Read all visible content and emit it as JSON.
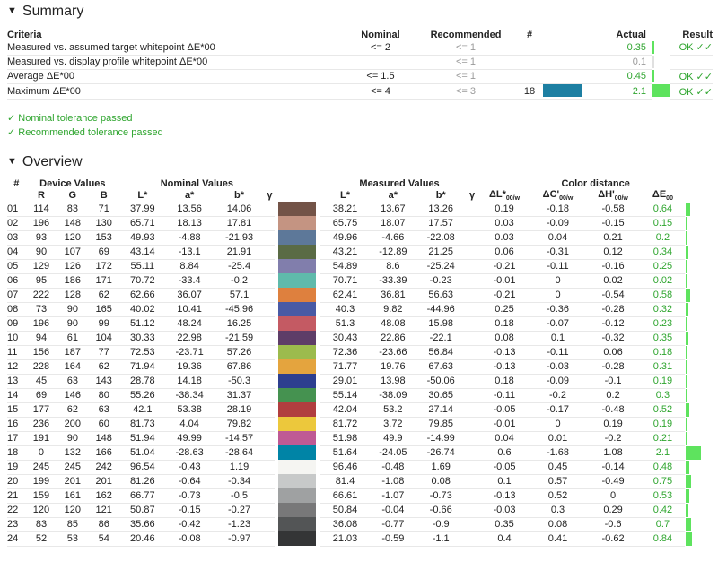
{
  "summary": {
    "title": "Summary",
    "headers": {
      "criteria": "Criteria",
      "nominal": "Nominal",
      "recommended": "Recommended",
      "num": "#",
      "actual": "Actual",
      "result": "Result"
    },
    "rows": [
      {
        "criteria": "Measured vs. assumed target whitepoint ΔE*00",
        "nominal": "<= 2",
        "recommended": "<= 1",
        "num": "",
        "actual": "0.35",
        "actual_color": "green",
        "result": "OK ✓✓",
        "bar": 0.05,
        "bar_color": "#5ee35e"
      },
      {
        "criteria": "Measured vs. display profile whitepoint ΔE*00",
        "nominal": "",
        "recommended": "<= 1",
        "num": "",
        "actual": "0.1",
        "actual_color": "grey",
        "result": "",
        "bar": 0.02,
        "bar_color": "#e0e0e0"
      },
      {
        "criteria": "Average ΔE*00",
        "nominal": "<= 1.5",
        "recommended": "<= 1",
        "num": "",
        "actual": "0.45",
        "actual_color": "green",
        "result": "OK ✓✓",
        "bar": 0.06,
        "bar_color": "#5ee35e"
      },
      {
        "criteria": "Maximum ΔE*00",
        "nominal": "<= 4",
        "recommended": "<= 3",
        "num": "18",
        "actual": "2.1",
        "actual_color": "green",
        "result": "OK ✓✓",
        "bar": 0.5,
        "bar_color": "#5ee35e",
        "swatch": "#1d7fa2"
      }
    ],
    "nominal_passed": "✓ Nominal tolerance passed",
    "recommended_passed": "✓ Recommended tolerance passed"
  },
  "overview": {
    "title": "Overview",
    "group_headers": {
      "device": "Device Values",
      "nominal": "Nominal Values",
      "measured": "Measured Values",
      "distance": "Color distance"
    },
    "col_headers": {
      "num": "#",
      "r": "R",
      "g": "G",
      "b": "B",
      "L": "L*",
      "a": "a*",
      "bb": "b*",
      "gamma": "γ",
      "mL": "L*",
      "ma": "a*",
      "mb": "b*",
      "mgamma": "γ",
      "dL": "ΔL*",
      "dC": "ΔC'",
      "dH": "ΔH'",
      "dE": "ΔE",
      "sub": "00/w",
      "sub2": "00"
    },
    "rows": [
      {
        "id": "01",
        "R": "114",
        "G": "83",
        "B": "71",
        "L": "37.99",
        "a": "13.56",
        "b": "14.06",
        "color": "#735347",
        "mL": "38.21",
        "ma": "13.67",
        "mb": "13.26",
        "dL": "0.19",
        "dC": "-0.18",
        "dH": "-0.58",
        "dE": "0.64",
        "bar": 0.64
      },
      {
        "id": "02",
        "R": "196",
        "G": "148",
        "B": "130",
        "L": "65.71",
        "a": "18.13",
        "b": "17.81",
        "color": "#c49482",
        "mL": "65.75",
        "ma": "18.07",
        "mb": "17.57",
        "dL": "0.03",
        "dC": "-0.09",
        "dH": "-0.15",
        "dE": "0.15",
        "bar": 0.15
      },
      {
        "id": "03",
        "R": "93",
        "G": "120",
        "B": "153",
        "L": "49.93",
        "a": "-4.88",
        "b": "-21.93",
        "color": "#5d7899",
        "mL": "49.96",
        "ma": "-4.66",
        "mb": "-22.08",
        "dL": "0.03",
        "dC": "0.04",
        "dH": "0.21",
        "dE": "0.2",
        "bar": 0.2
      },
      {
        "id": "04",
        "R": "90",
        "G": "107",
        "B": "69",
        "L": "43.14",
        "a": "-13.1",
        "b": "21.91",
        "color": "#5a6b45",
        "mL": "43.21",
        "ma": "-12.89",
        "mb": "21.25",
        "dL": "0.06",
        "dC": "-0.31",
        "dH": "0.12",
        "dE": "0.34",
        "bar": 0.34
      },
      {
        "id": "05",
        "R": "129",
        "G": "126",
        "B": "172",
        "L": "55.11",
        "a": "8.84",
        "b": "-25.4",
        "color": "#817eac",
        "mL": "54.89",
        "ma": "8.6",
        "mb": "-25.24",
        "dL": "-0.21",
        "dC": "-0.11",
        "dH": "-0.16",
        "dE": "0.25",
        "bar": 0.25
      },
      {
        "id": "06",
        "R": "95",
        "G": "186",
        "B": "171",
        "L": "70.72",
        "a": "-33.4",
        "b": "-0.2",
        "color": "#5fbaab",
        "mL": "70.71",
        "ma": "-33.39",
        "mb": "-0.23",
        "dL": "-0.01",
        "dC": "0",
        "dH": "0.02",
        "dE": "0.02",
        "bar": 0.02
      },
      {
        "id": "07",
        "R": "222",
        "G": "128",
        "B": "62",
        "L": "62.66",
        "a": "36.07",
        "b": "57.1",
        "color": "#de803e",
        "mL": "62.41",
        "ma": "36.81",
        "mb": "56.63",
        "dL": "-0.21",
        "dC": "0",
        "dH": "-0.54",
        "dE": "0.58",
        "bar": 0.58
      },
      {
        "id": "08",
        "R": "73",
        "G": "90",
        "B": "165",
        "L": "40.02",
        "a": "10.41",
        "b": "-45.96",
        "color": "#495aa5",
        "mL": "40.3",
        "ma": "9.82",
        "mb": "-44.96",
        "dL": "0.25",
        "dC": "-0.36",
        "dH": "-0.28",
        "dE": "0.32",
        "bar": 0.32
      },
      {
        "id": "09",
        "R": "196",
        "G": "90",
        "B": "99",
        "L": "51.12",
        "a": "48.24",
        "b": "16.25",
        "color": "#c45a63",
        "mL": "51.3",
        "ma": "48.08",
        "mb": "15.98",
        "dL": "0.18",
        "dC": "-0.07",
        "dH": "-0.12",
        "dE": "0.23",
        "bar": 0.23
      },
      {
        "id": "10",
        "R": "94",
        "G": "61",
        "B": "104",
        "L": "30.33",
        "a": "22.98",
        "b": "-21.59",
        "color": "#5e3d68",
        "mL": "30.43",
        "ma": "22.86",
        "mb": "-22.1",
        "dL": "0.08",
        "dC": "0.1",
        "dH": "-0.32",
        "dE": "0.35",
        "bar": 0.35
      },
      {
        "id": "11",
        "R": "156",
        "G": "187",
        "B": "77",
        "L": "72.53",
        "a": "-23.71",
        "b": "57.26",
        "color": "#9cbb4d",
        "mL": "72.36",
        "ma": "-23.66",
        "mb": "56.84",
        "dL": "-0.13",
        "dC": "-0.11",
        "dH": "0.06",
        "dE": "0.18",
        "bar": 0.18
      },
      {
        "id": "12",
        "R": "228",
        "G": "164",
        "B": "62",
        "L": "71.94",
        "a": "19.36",
        "b": "67.86",
        "color": "#e4a43e",
        "mL": "71.77",
        "ma": "19.76",
        "mb": "67.63",
        "dL": "-0.13",
        "dC": "-0.03",
        "dH": "-0.28",
        "dE": "0.31",
        "bar": 0.31
      },
      {
        "id": "13",
        "R": "45",
        "G": "63",
        "B": "143",
        "L": "28.78",
        "a": "14.18",
        "b": "-50.3",
        "color": "#2d3f8f",
        "mL": "29.01",
        "ma": "13.98",
        "mb": "-50.06",
        "dL": "0.18",
        "dC": "-0.09",
        "dH": "-0.1",
        "dE": "0.19",
        "bar": 0.19
      },
      {
        "id": "14",
        "R": "69",
        "G": "146",
        "B": "80",
        "L": "55.26",
        "a": "-38.34",
        "b": "31.37",
        "color": "#459250",
        "mL": "55.14",
        "ma": "-38.09",
        "mb": "30.65",
        "dL": "-0.11",
        "dC": "-0.2",
        "dH": "0.2",
        "dE": "0.3",
        "bar": 0.3
      },
      {
        "id": "15",
        "R": "177",
        "G": "62",
        "B": "63",
        "L": "42.1",
        "a": "53.38",
        "b": "28.19",
        "color": "#b13e3f",
        "mL": "42.04",
        "ma": "53.2",
        "mb": "27.14",
        "dL": "-0.05",
        "dC": "-0.17",
        "dH": "-0.48",
        "dE": "0.52",
        "bar": 0.52
      },
      {
        "id": "16",
        "R": "236",
        "G": "200",
        "B": "60",
        "L": "81.73",
        "a": "4.04",
        "b": "79.82",
        "color": "#ecc83c",
        "mL": "81.72",
        "ma": "3.72",
        "mb": "79.85",
        "dL": "-0.01",
        "dC": "0",
        "dH": "0.19",
        "dE": "0.19",
        "bar": 0.19
      },
      {
        "id": "17",
        "R": "191",
        "G": "90",
        "B": "148",
        "L": "51.94",
        "a": "49.99",
        "b": "-14.57",
        "color": "#bf5a94",
        "mL": "51.98",
        "ma": "49.9",
        "mb": "-14.99",
        "dL": "0.04",
        "dC": "0.01",
        "dH": "-0.2",
        "dE": "0.21",
        "bar": 0.21
      },
      {
        "id": "18",
        "R": "0",
        "G": "132",
        "B": "166",
        "L": "51.04",
        "a": "-28.63",
        "b": "-28.64",
        "color": "#0084a6",
        "mL": "51.64",
        "ma": "-24.05",
        "mb": "-26.74",
        "dL": "0.6",
        "dC": "-1.68",
        "dH": "1.08",
        "dE": "2.1",
        "bar": 2.1
      },
      {
        "id": "19",
        "R": "245",
        "G": "245",
        "B": "242",
        "L": "96.54",
        "a": "-0.43",
        "b": "1.19",
        "color": "#f5f5f2",
        "mL": "96.46",
        "ma": "-0.48",
        "mb": "1.69",
        "dL": "-0.05",
        "dC": "0.45",
        "dH": "-0.14",
        "dE": "0.48",
        "bar": 0.48
      },
      {
        "id": "20",
        "R": "199",
        "G": "201",
        "B": "201",
        "L": "81.26",
        "a": "-0.64",
        "b": "-0.34",
        "color": "#c7c9c9",
        "mL": "81.4",
        "ma": "-1.08",
        "mb": "0.08",
        "dL": "0.1",
        "dC": "0.57",
        "dH": "-0.49",
        "dE": "0.75",
        "bar": 0.75
      },
      {
        "id": "21",
        "R": "159",
        "G": "161",
        "B": "162",
        "L": "66.77",
        "a": "-0.73",
        "b": "-0.5",
        "color": "#9fa1a2",
        "mL": "66.61",
        "ma": "-1.07",
        "mb": "-0.73",
        "dL": "-0.13",
        "dC": "0.52",
        "dH": "0",
        "dE": "0.53",
        "bar": 0.53
      },
      {
        "id": "22",
        "R": "120",
        "G": "120",
        "B": "121",
        "L": "50.87",
        "a": "-0.15",
        "b": "-0.27",
        "color": "#787879",
        "mL": "50.84",
        "ma": "-0.04",
        "mb": "-0.66",
        "dL": "-0.03",
        "dC": "0.3",
        "dH": "0.29",
        "dE": "0.42",
        "bar": 0.42
      },
      {
        "id": "23",
        "R": "83",
        "G": "85",
        "B": "86",
        "L": "35.66",
        "a": "-0.42",
        "b": "-1.23",
        "color": "#535556",
        "mL": "36.08",
        "ma": "-0.77",
        "mb": "-0.9",
        "dL": "0.35",
        "dC": "0.08",
        "dH": "-0.6",
        "dE": "0.7",
        "bar": 0.7
      },
      {
        "id": "24",
        "R": "52",
        "G": "53",
        "B": "54",
        "L": "20.46",
        "a": "-0.08",
        "b": "-0.97",
        "color": "#343536",
        "mL": "21.03",
        "ma": "-0.59",
        "mb": "-1.1",
        "dL": "0.4",
        "dC": "0.41",
        "dH": "-0.62",
        "dE": "0.84",
        "bar": 0.84
      }
    ]
  }
}
